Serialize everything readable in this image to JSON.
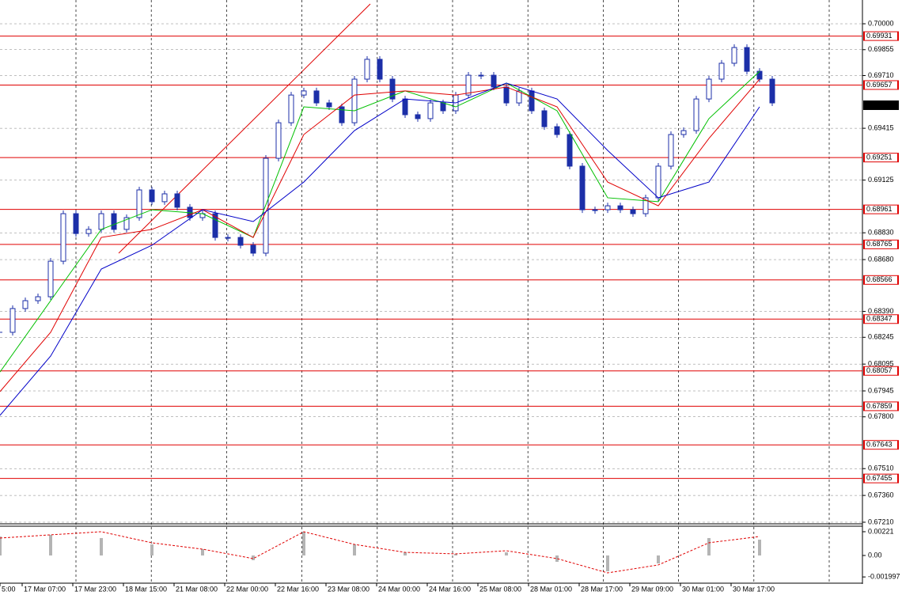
{
  "chart_data": {
    "type": "candlestick",
    "xlim": [
      0,
      272.5
    ],
    "xticks": [
      {
        "value": 0,
        "label": "5:00"
      },
      {
        "value": 7,
        "label": "17 Mar 07:00"
      },
      {
        "value": 23,
        "label": "17 Mar 23:00"
      },
      {
        "value": 39,
        "label": "18 Mar 15:00"
      },
      {
        "value": 55,
        "label": "21 Mar 08:00"
      },
      {
        "value": 71,
        "label": "22 Mar 00:00"
      },
      {
        "value": 87,
        "label": "22 Mar 16:00"
      },
      {
        "value": 103,
        "label": "23 Mar 08:00"
      },
      {
        "value": 119,
        "label": "24 Mar 00:00"
      },
      {
        "value": 135,
        "label": "24 Mar 16:00"
      },
      {
        "value": 151,
        "label": "25 Mar 08:00"
      },
      {
        "value": 167,
        "label": "28 Mar 01:00"
      },
      {
        "value": 183,
        "label": "28 Mar 17:00"
      },
      {
        "value": 199,
        "label": "29 Mar 09:00"
      },
      {
        "value": 215,
        "label": "30 Mar 01:00"
      },
      {
        "value": 231,
        "label": "30 Mar 17:00"
      }
    ],
    "ylim": [
      0.67201,
      0.70133
    ],
    "yticks": [
      {
        "value": 0.7,
        "label": "0.70000"
      },
      0.69855,
      {
        "value": 0.6971,
        "label": "0.69710"
      },
      0.69415,
      0.69125,
      {
        "value": 0.6883,
        "label": "0.68830"
      },
      {
        "value": 0.6868,
        "label": "0.68680"
      },
      {
        "value": 0.6839,
        "label": "0.68390"
      },
      0.68245,
      0.68095,
      0.67945,
      {
        "value": 0.678,
        "label": "0.67800"
      },
      {
        "value": 0.6751,
        "label": "0.67510"
      },
      {
        "value": 0.6736,
        "label": "0.67360"
      },
      {
        "value": 0.6721,
        "label": "0.67210"
      }
    ],
    "grid": true,
    "color": "#1c2fa8",
    "x": [
      0,
      4,
      8,
      12,
      16,
      20,
      24,
      28,
      32,
      36,
      40,
      44,
      48,
      52,
      56,
      60,
      64,
      68,
      72,
      76,
      80,
      84,
      88,
      92,
      96,
      100,
      104,
      108,
      112,
      116,
      120,
      124,
      128,
      132,
      136,
      140,
      144,
      148,
      152,
      156,
      160,
      164,
      168,
      172,
      176,
      180,
      184,
      188,
      192,
      196,
      200,
      204,
      208,
      212,
      216,
      220,
      224,
      228,
      232,
      236,
      240,
      244
    ],
    "close": [
      0.68273,
      0.68406,
      0.6845,
      0.68472,
      0.68671,
      0.68937,
      0.68826,
      0.68849,
      0.68937,
      0.68849,
      0.68915,
      0.6907,
      0.69004,
      0.69048,
      0.68973,
      0.68915,
      0.68937,
      0.68804,
      0.68804,
      0.6876,
      0.68716,
      0.69247,
      0.69446,
      0.69601,
      0.69624,
      0.69557,
      0.69535,
      0.69446,
      0.6969,
      0.69801,
      0.6969,
      0.69579,
      0.69491,
      0.69469,
      0.69557,
      0.69513,
      0.69601,
      0.69712,
      0.69712,
      0.69646,
      0.69557,
      0.69624,
      0.69513,
      0.69424,
      0.6938,
      0.69203,
      0.68959,
      0.68959,
      0.68981,
      0.68959,
      0.68937,
      0.69026,
      0.69203,
      0.6938,
      0.69402,
      0.69579,
      0.6969,
      0.69779,
      0.69867,
      0.69734,
      0.6969,
      0.69557
    ],
    "ma_x": [
      0,
      16,
      32,
      48,
      64,
      80,
      96,
      112,
      128,
      144,
      160,
      176,
      192,
      208,
      224,
      240
    ],
    "moving_averages": [
      {
        "color": "#00c000",
        "values": [
          0.68051,
          0.6845,
          0.68849,
          0.68959,
          0.68937,
          0.68804,
          0.69535,
          0.69513,
          0.69624,
          0.69535,
          0.69668,
          0.69513,
          0.69026,
          0.69004,
          0.69469,
          0.69734
        ]
      },
      {
        "color": "#e00000",
        "values": [
          0.67941,
          0.68273,
          0.68804,
          0.68849,
          0.68959,
          0.68804,
          0.6938,
          0.69601,
          0.69624,
          0.69601,
          0.69646,
          0.69535,
          0.69114,
          0.68981,
          0.69358,
          0.6969
        ]
      },
      {
        "color": "#0000c8",
        "values": [
          0.67808,
          0.6814,
          0.68627,
          0.6876,
          0.68959,
          0.68893,
          0.69114,
          0.69402,
          0.69579,
          0.69557,
          0.69668,
          0.69579,
          0.69291,
          0.69026,
          0.69114,
          0.69535
        ]
      }
    ],
    "levels": [
      0.69931,
      0.69657,
      0.69251,
      0.68961,
      0.68765,
      0.68566,
      0.68347,
      0.68057,
      0.67859,
      0.67643,
      0.67455
    ],
    "level_color": "#e00000",
    "current_price": 0.69544,
    "macd": {
      "ylim": [
        -0.00243,
        0.00265
      ],
      "yticks": [
        0.00221,
        {
          "value": 0,
          "label": "0.00"
        },
        -0.001997
      ],
      "histogram_color": "#b4b4b4",
      "signal_color": "#e00000",
      "histogram": [
        0.00177,
        0.00192,
        0.00162,
        0.00103,
        0.00059,
        -0.00044,
        0.00221,
        0.00103,
        0.00029,
        0.00015,
        0.00029,
        -0.00059,
        -0.00147,
        -0.00074,
        0.00162,
        0.00147
      ],
      "signal": [
        0.00162,
        0.00192,
        0.00221,
        0.00118,
        0.00059,
        -0.00029,
        0.00221,
        0.00103,
        0.00029,
        0.00015,
        0.00044,
        -0.00029,
        -0.00162,
        -0.00088,
        0.00118,
        0.00177
      ]
    }
  }
}
